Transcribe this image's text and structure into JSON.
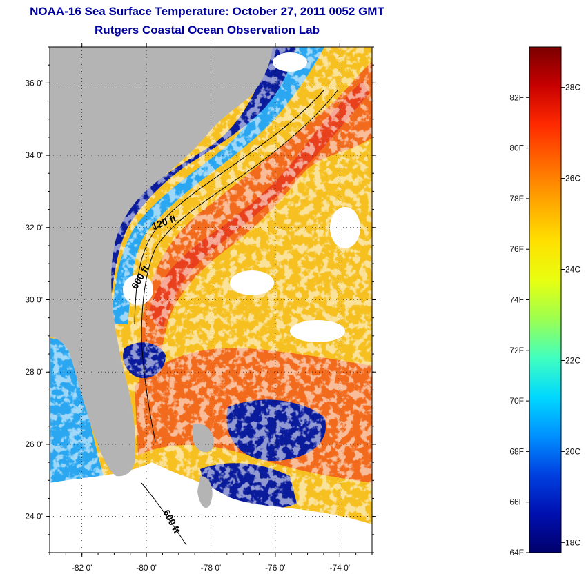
{
  "title": "NOAA-16 Sea Surface Temperature:  October 27, 2011 0052 GMT",
  "subtitle": "Rutgers Coastal Ocean Observation Lab",
  "map": {
    "lon_range": [
      -83,
      -73
    ],
    "lat_range": [
      23,
      37
    ],
    "x_ticks": [
      {
        "lon": -82,
        "label": "-82 0'"
      },
      {
        "lon": -80,
        "label": "-80 0'"
      },
      {
        "lon": -78,
        "label": "-78 0'"
      },
      {
        "lon": -76,
        "label": "-76 0'"
      },
      {
        "lon": -74,
        "label": "-74 0'"
      }
    ],
    "y_ticks": [
      {
        "lat": 36,
        "label": "36 0'"
      },
      {
        "lat": 34,
        "label": "34 0'"
      },
      {
        "lat": 32,
        "label": "32 0'"
      },
      {
        "lat": 30,
        "label": "30 0'"
      },
      {
        "lat": 28,
        "label": "28 0'"
      },
      {
        "lat": 26,
        "label": "26 0'"
      },
      {
        "lat": 24,
        "label": "24 0'"
      }
    ],
    "isobath_labels": [
      "120 ft",
      "600 ft",
      "600 ft"
    ],
    "colors": {
      "land": "#b4b4b4",
      "cloud": "#ffffff",
      "warm": "#e8401c",
      "gulf_stream": "#f26a1c",
      "mid": "#f5c020",
      "cool": "#2aa7f0",
      "cold": "#0a1c9c",
      "contour": "#000000"
    }
  },
  "colorbar": {
    "range_f": [
      64,
      84
    ],
    "fahrenheit_labels": [
      "82F",
      "80F",
      "78F",
      "76F",
      "74F",
      "72F",
      "70F",
      "68F",
      "66F",
      "64F"
    ],
    "celsius_labels": [
      "28C",
      "26C",
      "24C",
      "22C",
      "20C",
      "18C"
    ],
    "colors": [
      "#7a0000",
      "#c80000",
      "#ff2a00",
      "#ff6a00",
      "#ffa800",
      "#ffe000",
      "#e8ff10",
      "#9cff50",
      "#40ffc0",
      "#00d8ff",
      "#0090ff",
      "#0040e0",
      "#0010b0",
      "#00006c"
    ]
  }
}
